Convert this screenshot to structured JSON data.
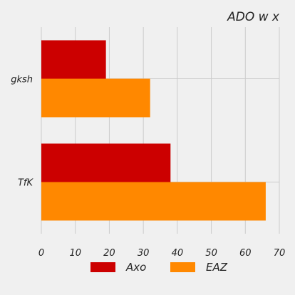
{
  "chart_data": {
    "type": "bar",
    "orientation": "horizontal",
    "title": "ADO  w x",
    "categories": [
      "gksh",
      "TfK"
    ],
    "series": [
      {
        "name": "Axo",
        "color": "#cc0000",
        "values": [
          19,
          38
        ]
      },
      {
        "name": "EAZ",
        "color": "#ff8800",
        "values": [
          32,
          66
        ]
      }
    ],
    "xlim": [
      0,
      70
    ],
    "xticks": [
      0,
      10,
      20,
      30,
      40,
      50,
      60,
      70
    ],
    "grid": true,
    "legend_position": "bottom-center"
  }
}
